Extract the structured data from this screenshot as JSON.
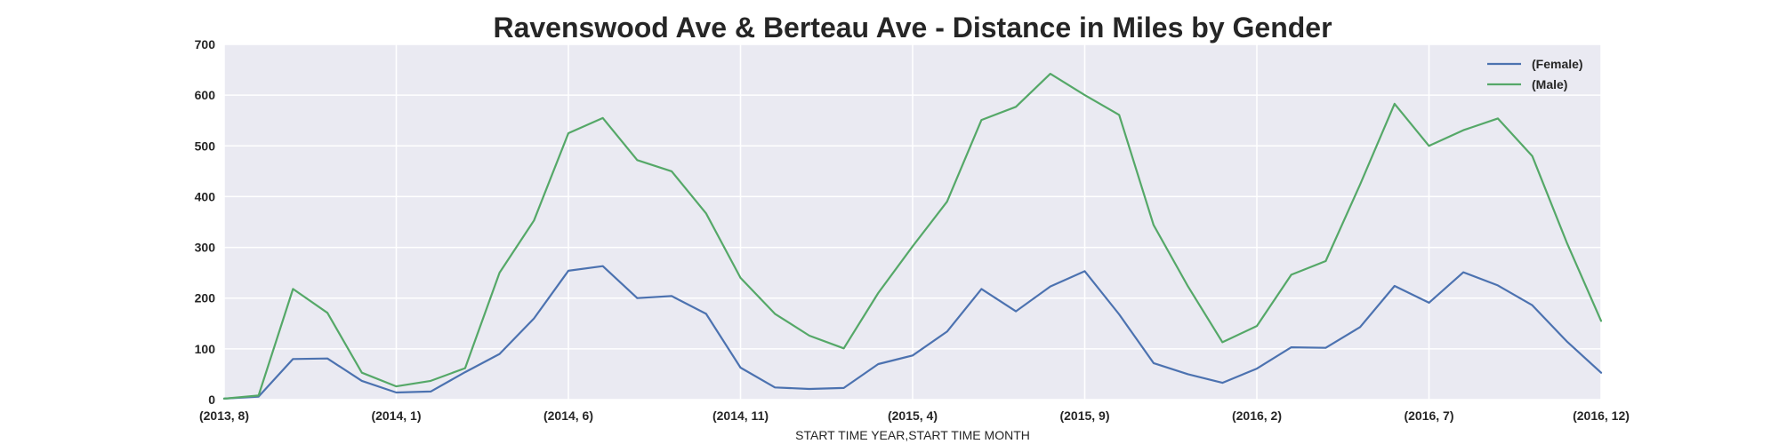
{
  "chart_data": {
    "type": "line",
    "title": "Ravenswood Ave & Berteau Ave - Distance in Miles by Gender",
    "xlabel": "START TIME YEAR,START TIME MONTH",
    "ylabel": "",
    "ylim": [
      0,
      700
    ],
    "yticks": [
      0,
      100,
      200,
      300,
      400,
      500,
      600,
      700
    ],
    "x": [
      "(2013, 8)",
      "(2013, 9)",
      "(2013, 10)",
      "(2013, 11)",
      "(2013, 12)",
      "(2014, 1)",
      "(2014, 2)",
      "(2014, 3)",
      "(2014, 4)",
      "(2014, 5)",
      "(2014, 6)",
      "(2014, 7)",
      "(2014, 8)",
      "(2014, 9)",
      "(2014, 10)",
      "(2014, 11)",
      "(2014, 12)",
      "(2015, 1)",
      "(2015, 2)",
      "(2015, 3)",
      "(2015, 4)",
      "(2015, 5)",
      "(2015, 6)",
      "(2015, 7)",
      "(2015, 8)",
      "(2015, 9)",
      "(2015, 10)",
      "(2015, 11)",
      "(2015, 12)",
      "(2016, 1)",
      "(2016, 2)",
      "(2016, 3)",
      "(2016, 4)",
      "(2016, 5)",
      "(2016, 6)",
      "(2016, 7)",
      "(2016, 8)",
      "(2016, 9)",
      "(2016, 10)",
      "(2016, 11)",
      "(2016, 12)"
    ],
    "xtick_labels": [
      "(2013, 8)",
      "(2014, 1)",
      "(2014, 6)",
      "(2014, 11)",
      "(2015, 4)",
      "(2015, 9)",
      "(2016, 2)",
      "(2016, 7)",
      "(2016, 12)"
    ],
    "series": [
      {
        "name": "(Female)",
        "color": "#4c72b0",
        "values": [
          2,
          6,
          80,
          81,
          37,
          14,
          16,
          54,
          90,
          160,
          254,
          263,
          200,
          204,
          169,
          63,
          24,
          21,
          23,
          70,
          87,
          134,
          218,
          174,
          223,
          253,
          168,
          72,
          50,
          33,
          61,
          103,
          102,
          143,
          224,
          191,
          251,
          225,
          186,
          115,
          53
        ]
      },
      {
        "name": "(Male)",
        "color": "#55a868",
        "values": [
          2,
          8,
          218,
          171,
          53,
          26,
          37,
          62,
          250,
          353,
          525,
          555,
          472,
          450,
          367,
          240,
          169,
          126,
          101,
          210,
          302,
          390,
          551,
          577,
          642,
          600,
          561,
          344,
          223,
          113,
          145,
          246,
          273,
          424,
          583,
          500,
          531,
          554,
          480,
          310,
          155
        ]
      }
    ],
    "legend": "top-right",
    "grid": true
  }
}
